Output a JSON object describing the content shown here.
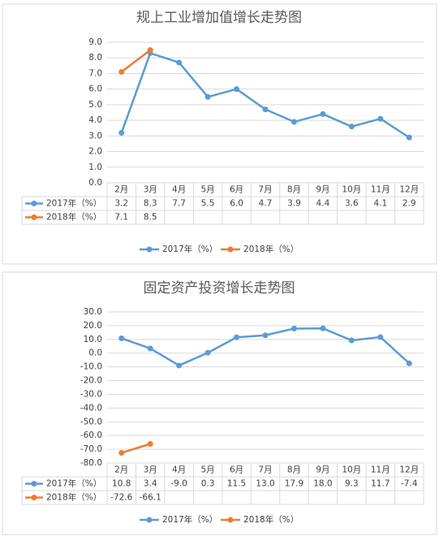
{
  "chart_data": [
    {
      "type": "line",
      "title": "规上工业增加值增长走势图",
      "categories": [
        "2月",
        "3月",
        "4月",
        "5月",
        "6月",
        "7月",
        "8月",
        "9月",
        "10月",
        "11月",
        "12月"
      ],
      "series": [
        {
          "name": "2017年（%）",
          "color": "#5b9bd5",
          "values": [
            3.2,
            8.3,
            7.7,
            5.5,
            6.0,
            4.7,
            3.9,
            4.4,
            3.6,
            4.1,
            2.9
          ],
          "value_labels": [
            "3.2",
            "8.3",
            "7.7",
            "5.5",
            "6.0",
            "4.7",
            "3.9",
            "4.4",
            "3.6",
            "4.1",
            "2.9"
          ]
        },
        {
          "name": "2018年（%）",
          "color": "#ed7d31",
          "values": [
            7.1,
            8.5,
            null,
            null,
            null,
            null,
            null,
            null,
            null,
            null,
            null
          ],
          "value_labels": [
            "7.1",
            "8.5",
            null,
            null,
            null,
            null,
            null,
            null,
            null,
            null,
            null
          ]
        }
      ],
      "ylim": [
        0,
        9
      ],
      "yticks": [
        {
          "value": 0,
          "label": "0.0"
        },
        {
          "value": 1,
          "label": "1.0"
        },
        {
          "value": 2,
          "label": "2.0"
        },
        {
          "value": 3,
          "label": "3.0"
        },
        {
          "value": 4,
          "label": "4.0"
        },
        {
          "value": 5,
          "label": "5.0"
        },
        {
          "value": 6,
          "label": "6.0"
        },
        {
          "value": 7,
          "label": "7.0"
        },
        {
          "value": 8,
          "label": "8.0"
        },
        {
          "value": 9,
          "label": "9.0"
        }
      ],
      "grid": true,
      "legend": "bottom"
    },
    {
      "type": "line",
      "title": "固定资产投资增长走势图",
      "categories": [
        "2月",
        "3月",
        "4月",
        "5月",
        "6月",
        "7月",
        "8月",
        "9月",
        "10月",
        "11月",
        "12月"
      ],
      "series": [
        {
          "name": "2017年（%）",
          "color": "#5b9bd5",
          "values": [
            10.8,
            3.4,
            -9.0,
            0.3,
            11.5,
            13.0,
            17.9,
            18.0,
            9.3,
            11.7,
            -7.4
          ],
          "value_labels": [
            "10.8",
            "3.4",
            "-9.0",
            "0.3",
            "11.5",
            "13.0",
            "17.9",
            "18.0",
            "9.3",
            "11.7",
            "-7.4"
          ]
        },
        {
          "name": "2018年（%）",
          "color": "#ed7d31",
          "values": [
            -72.6,
            -66.1,
            null,
            null,
            null,
            null,
            null,
            null,
            null,
            null,
            null
          ],
          "value_labels": [
            "-72.6",
            "-66.1",
            null,
            null,
            null,
            null,
            null,
            null,
            null,
            null,
            null
          ]
        }
      ],
      "ylim": [
        -80,
        30
      ],
      "yticks": [
        {
          "value": -80,
          "label": "-80.0"
        },
        {
          "value": -70,
          "label": "-70.0"
        },
        {
          "value": -60,
          "label": "-60.0"
        },
        {
          "value": -50,
          "label": "-50.0"
        },
        {
          "value": -40,
          "label": "-40.0"
        },
        {
          "value": -30,
          "label": "-30.0"
        },
        {
          "value": -20,
          "label": "-20.0"
        },
        {
          "value": -10,
          "label": "-10.0"
        },
        {
          "value": 0,
          "label": "0.0"
        },
        {
          "value": 10,
          "label": "10.0"
        },
        {
          "value": 20,
          "label": "20.0"
        },
        {
          "value": 30,
          "label": "30.0"
        }
      ],
      "grid": true,
      "legend": "bottom"
    }
  ]
}
